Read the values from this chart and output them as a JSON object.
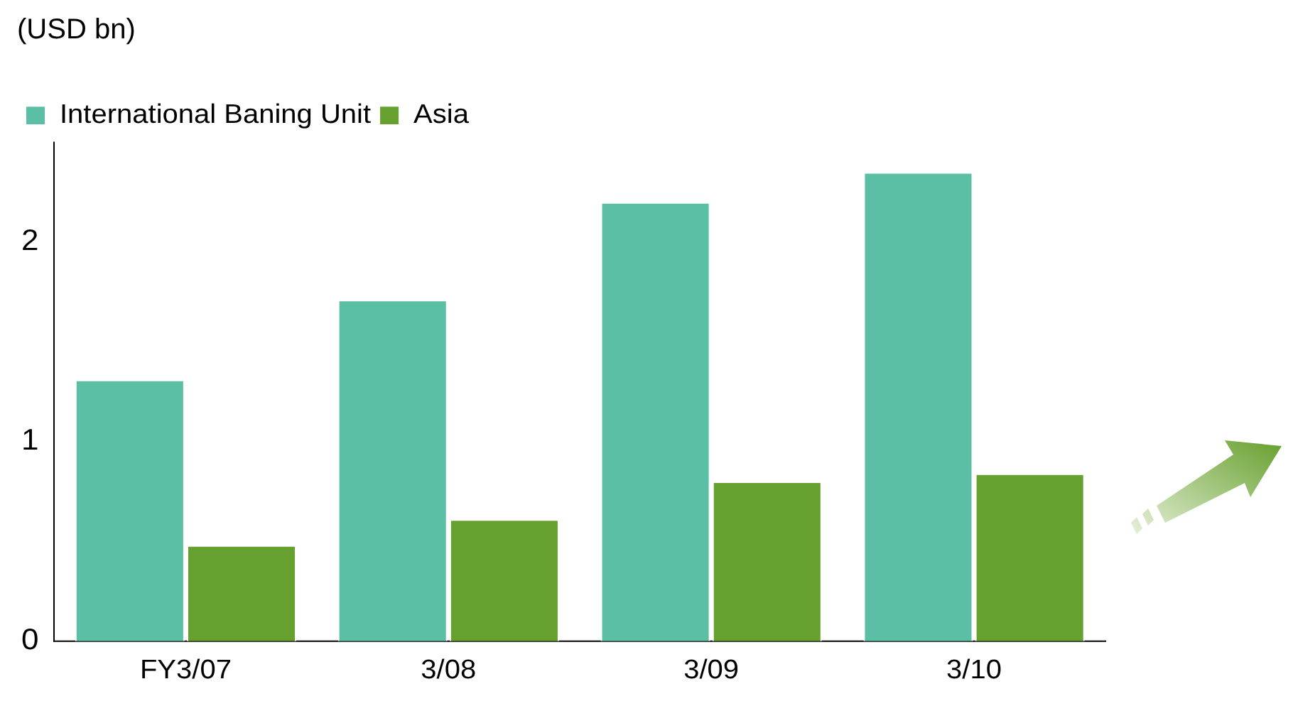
{
  "chart_data": {
    "type": "bar",
    "ylabel": "(USD bn)",
    "categories": [
      "FY3/07",
      "3/08",
      "3/09",
      "3/10"
    ],
    "series": [
      {
        "name": "International Baning Unit",
        "color": "#5bbfa6",
        "values": [
          1.31,
          1.71,
          2.2,
          2.35
        ]
      },
      {
        "name": "Asia",
        "color": "#66a02e",
        "values": [
          0.48,
          0.61,
          0.8,
          0.84
        ]
      }
    ],
    "ylim": [
      0,
      2.5
    ],
    "yticks": [
      0,
      1,
      2
    ],
    "grid": false,
    "legend": "top left"
  }
}
